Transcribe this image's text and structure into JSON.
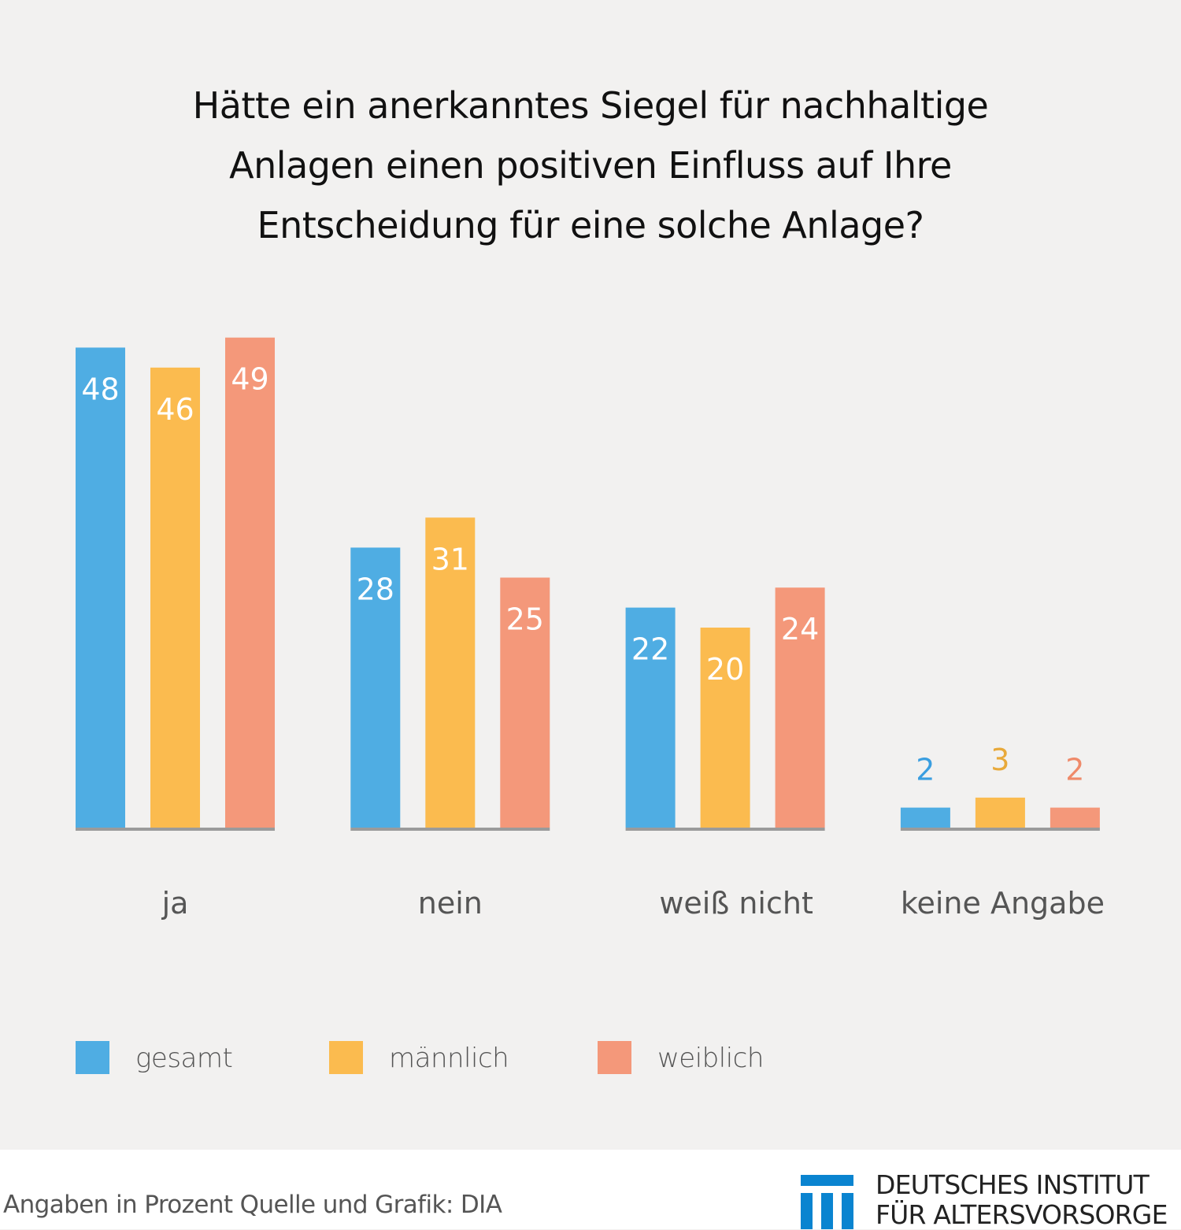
{
  "chart_data": {
    "type": "bar",
    "title": "Hätte ein anerkanntes Siegel für nachhaltige Anlagen einen positiven Einfluss auf Ihre Entscheidung für eine solche Anlage?",
    "title_lines": [
      "Hätte ein anerkanntes Siegel für nachhaltige",
      "Anlagen einen positiven Einfluss auf Ihre",
      "Entscheidung für eine solche Anlage?"
    ],
    "categories": [
      "ja",
      "nein",
      "weiß nicht",
      "keine Angabe"
    ],
    "series": [
      {
        "name": "gesamt",
        "color": "#4fade3",
        "label_color": "#3a9ee0",
        "values": [
          48,
          28,
          22,
          2
        ]
      },
      {
        "name": "männlich",
        "color": "#fbbb4f",
        "label_color": "#e8a93a",
        "values": [
          46,
          31,
          20,
          3
        ]
      },
      {
        "name": "weiblich",
        "color": "#f4987a",
        "label_color": "#ef8a6a",
        "values": [
          49,
          25,
          24,
          2
        ]
      }
    ],
    "xlabel": "",
    "ylabel": "",
    "ylim": [
      0,
      50
    ],
    "grid": false,
    "axis_color": "#9b9b9b",
    "legend_position": "bottom-left",
    "data_labels": "inside-top (above bar when bar is small)"
  },
  "footer": {
    "note": "Angaben in Prozent  Quelle und Grafik: DIA",
    "logo_line1": "DEUTSCHES INSTITUT",
    "logo_line2": "FÜR ALTERSVORSORGE",
    "logo_color": "#0a84d0"
  }
}
